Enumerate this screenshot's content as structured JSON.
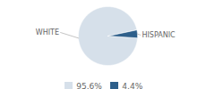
{
  "chart_data": {
    "type": "pie",
    "categories": [
      "WHITE",
      "HISPANIC"
    ],
    "values": [
      95.6,
      4.4
    ],
    "value_labels": [
      "95.6%",
      "4.4%"
    ],
    "colors": [
      "#d6e0ea",
      "#2e5f8a"
    ],
    "legend": "bottom"
  }
}
